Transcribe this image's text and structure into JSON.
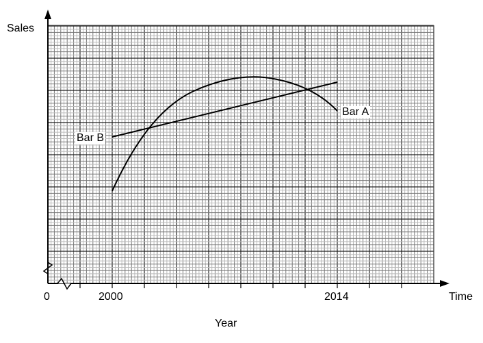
{
  "chart_data": {
    "type": "line",
    "title": "",
    "xlabel": "Year",
    "ylabel": "Sales",
    "x_axis_end_label": "Time",
    "x_tick_labels": [
      "0",
      "2000",
      "2014"
    ],
    "y_tick_labels": [],
    "grid": true,
    "axis_breaks": [
      "x",
      "y"
    ],
    "series": [
      {
        "name": "Bar A",
        "shape": "curve (rises steeply, peaks around 2009, then falls)",
        "x": [
          2000,
          2002,
          2004,
          2006,
          2008,
          2009,
          2010,
          2012,
          2014
        ],
        "y_rel": [
          2.9,
          4.6,
          5.7,
          6.3,
          6.5,
          6.5,
          6.4,
          5.9,
          5.4
        ]
      },
      {
        "name": "Bar B",
        "shape": "straight line",
        "x": [
          2000,
          2014
        ],
        "y_rel": [
          4.6,
          6.3
        ]
      }
    ],
    "intersections_year_approx": [
      2003,
      2012
    ]
  },
  "labels": {
    "ylabel": "Sales",
    "xlabel": "Year",
    "time": "Time",
    "zero": "0",
    "x2000": "2000",
    "x2014": "2014",
    "barA": "Bar A",
    "barB": "Bar B"
  }
}
